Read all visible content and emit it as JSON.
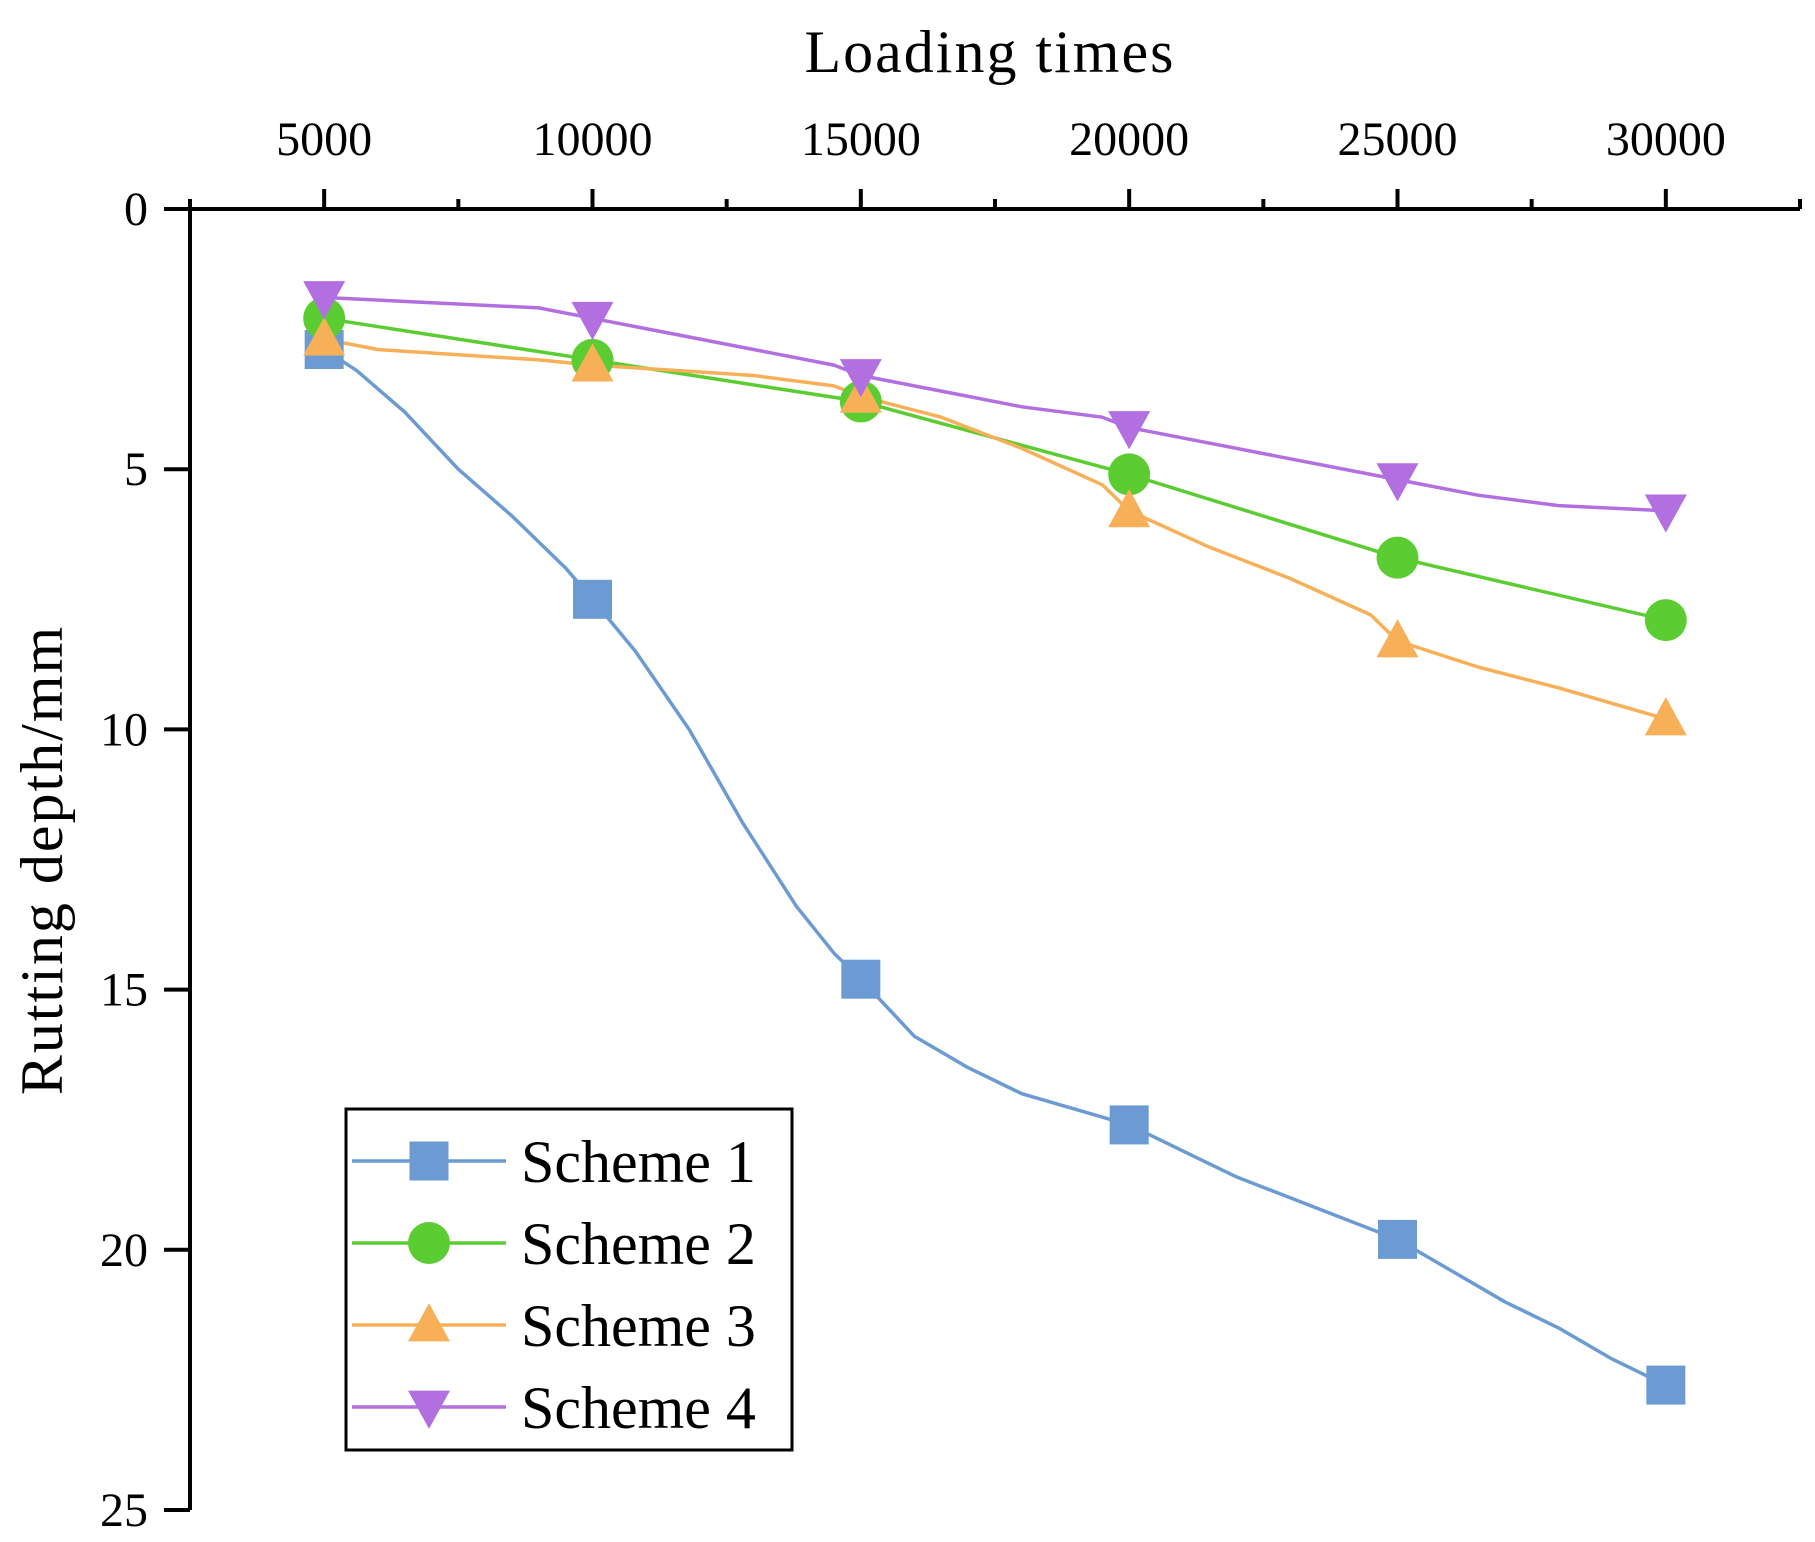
{
  "chart_data": {
    "type": "line",
    "title": "",
    "xlabel": "Loading times",
    "ylabel": "Rutting depth/mm",
    "x_axis_position": "top",
    "y_axis_inverted": true,
    "xlim": [
      2500,
      32500
    ],
    "ylim": [
      0,
      25
    ],
    "x_ticks": [
      5000,
      10000,
      15000,
      20000,
      25000,
      30000
    ],
    "x_tick_labels": [
      "5000",
      "10000",
      "15000",
      "20000",
      "25000",
      "30000"
    ],
    "y_ticks": [
      0,
      5,
      10,
      15,
      20,
      25
    ],
    "y_tick_labels": [
      "0",
      "5",
      "10",
      "15",
      "20",
      "25"
    ],
    "legend_position": "bottom-left",
    "x": [
      5000,
      10000,
      15000,
      20000,
      25000,
      30000
    ],
    "series": [
      {
        "name": "Scheme 1",
        "marker": "square",
        "color": "#6b9bd2",
        "values": [
          2.7,
          7.5,
          14.8,
          17.6,
          19.8,
          22.6
        ],
        "curve": [
          [
            5000,
            2.7
          ],
          [
            5600,
            3.1
          ],
          [
            6500,
            3.9
          ],
          [
            7500,
            5.0
          ],
          [
            8500,
            5.9
          ],
          [
            9500,
            6.9
          ],
          [
            10000,
            7.5
          ],
          [
            10800,
            8.5
          ],
          [
            11800,
            10.0
          ],
          [
            12800,
            11.8
          ],
          [
            13800,
            13.4
          ],
          [
            14500,
            14.3
          ],
          [
            15000,
            14.8
          ],
          [
            16000,
            15.9
          ],
          [
            17000,
            16.5
          ],
          [
            18000,
            17.0
          ],
          [
            19000,
            17.3
          ],
          [
            20000,
            17.6
          ],
          [
            21000,
            18.1
          ],
          [
            22000,
            18.6
          ],
          [
            23000,
            19.0
          ],
          [
            24000,
            19.4
          ],
          [
            25000,
            19.8
          ],
          [
            26000,
            20.4
          ],
          [
            27000,
            21.0
          ],
          [
            28000,
            21.5
          ],
          [
            29000,
            22.1
          ],
          [
            30000,
            22.6
          ]
        ]
      },
      {
        "name": "Scheme 2",
        "marker": "circle",
        "color": "#5ccc33",
        "values": [
          2.1,
          2.9,
          3.7,
          5.1,
          6.7,
          7.9
        ],
        "curve": [
          [
            5000,
            2.1
          ],
          [
            10000,
            2.9
          ],
          [
            15000,
            3.7
          ],
          [
            20000,
            5.1
          ],
          [
            25000,
            6.7
          ],
          [
            30000,
            7.9
          ]
        ]
      },
      {
        "name": "Scheme 3",
        "marker": "triangle-up",
        "color": "#f8b058",
        "values": [
          2.5,
          3.0,
          3.6,
          5.8,
          8.3,
          9.8
        ],
        "curve": [
          [
            5000,
            2.5
          ],
          [
            6000,
            2.7
          ],
          [
            7500,
            2.8
          ],
          [
            9000,
            2.9
          ],
          [
            10000,
            3.0
          ],
          [
            11500,
            3.1
          ],
          [
            13000,
            3.2
          ],
          [
            14500,
            3.4
          ],
          [
            15000,
            3.6
          ],
          [
            16500,
            4.0
          ],
          [
            18000,
            4.6
          ],
          [
            19500,
            5.3
          ],
          [
            20000,
            5.8
          ],
          [
            21500,
            6.5
          ],
          [
            23000,
            7.1
          ],
          [
            24500,
            7.8
          ],
          [
            25000,
            8.3
          ],
          [
            26500,
            8.8
          ],
          [
            28000,
            9.2
          ],
          [
            29000,
            9.5
          ],
          [
            30000,
            9.8
          ]
        ]
      },
      {
        "name": "Scheme 4",
        "marker": "triangle-down",
        "color": "#b26fe0",
        "values": [
          1.7,
          2.1,
          3.2,
          4.2,
          5.2,
          5.8
        ],
        "curve": [
          [
            5000,
            1.7
          ],
          [
            7000,
            1.8
          ],
          [
            9000,
            1.9
          ],
          [
            10000,
            2.1
          ],
          [
            11500,
            2.4
          ],
          [
            13000,
            2.7
          ],
          [
            14500,
            3.0
          ],
          [
            15000,
            3.2
          ],
          [
            16500,
            3.5
          ],
          [
            18000,
            3.8
          ],
          [
            19500,
            4.0
          ],
          [
            20000,
            4.2
          ],
          [
            21500,
            4.5
          ],
          [
            23000,
            4.8
          ],
          [
            24500,
            5.1
          ],
          [
            25000,
            5.2
          ],
          [
            26500,
            5.5
          ],
          [
            28000,
            5.7
          ],
          [
            30000,
            5.8
          ]
        ]
      }
    ]
  }
}
